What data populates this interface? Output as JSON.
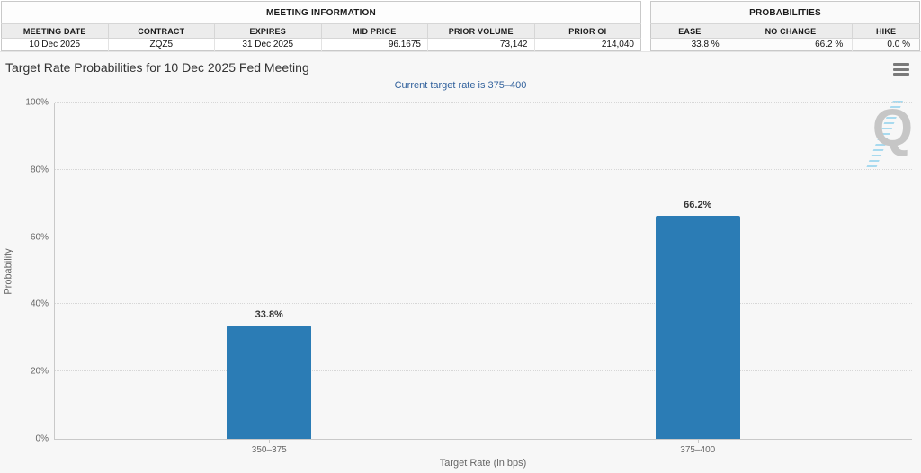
{
  "header": {
    "meeting_info": {
      "title": "MEETING INFORMATION",
      "columns": [
        "MEETING DATE",
        "CONTRACT",
        "EXPIRES",
        "MID PRICE",
        "PRIOR VOLUME",
        "PRIOR OI"
      ],
      "values": [
        "10 Dec 2025",
        "ZQZ5",
        "31 Dec 2025",
        "96.1675",
        "73,142",
        "214,040"
      ]
    },
    "probabilities": {
      "title": "PROBABILITIES",
      "columns": [
        "EASE",
        "NO CHANGE",
        "HIKE"
      ],
      "values": [
        "33.8 %",
        "66.2 %",
        "0.0 %"
      ]
    }
  },
  "chart": {
    "watermark_letter": "Q",
    "menu_icon": "hamburger-menu"
  },
  "chart_data": {
    "type": "bar",
    "title": "Target Rate Probabilities for 10 Dec 2025 Fed Meeting",
    "subtitle": "Current target rate is 375–400",
    "categories": [
      "350–375",
      "375–400"
    ],
    "values": [
      33.8,
      66.2
    ],
    "data_labels": [
      "33.8%",
      "66.2%"
    ],
    "xlabel": "Target Rate (in bps)",
    "ylabel": "Probability",
    "ylim": [
      0,
      100
    ],
    "yticks": [
      0,
      20,
      40,
      60,
      80,
      100
    ],
    "ytick_labels": [
      "0%",
      "20%",
      "40%",
      "60%",
      "80%",
      "100%"
    ],
    "bar_color": "#2b7cb5",
    "grid": "horizontal-dotted",
    "legend": "none"
  }
}
